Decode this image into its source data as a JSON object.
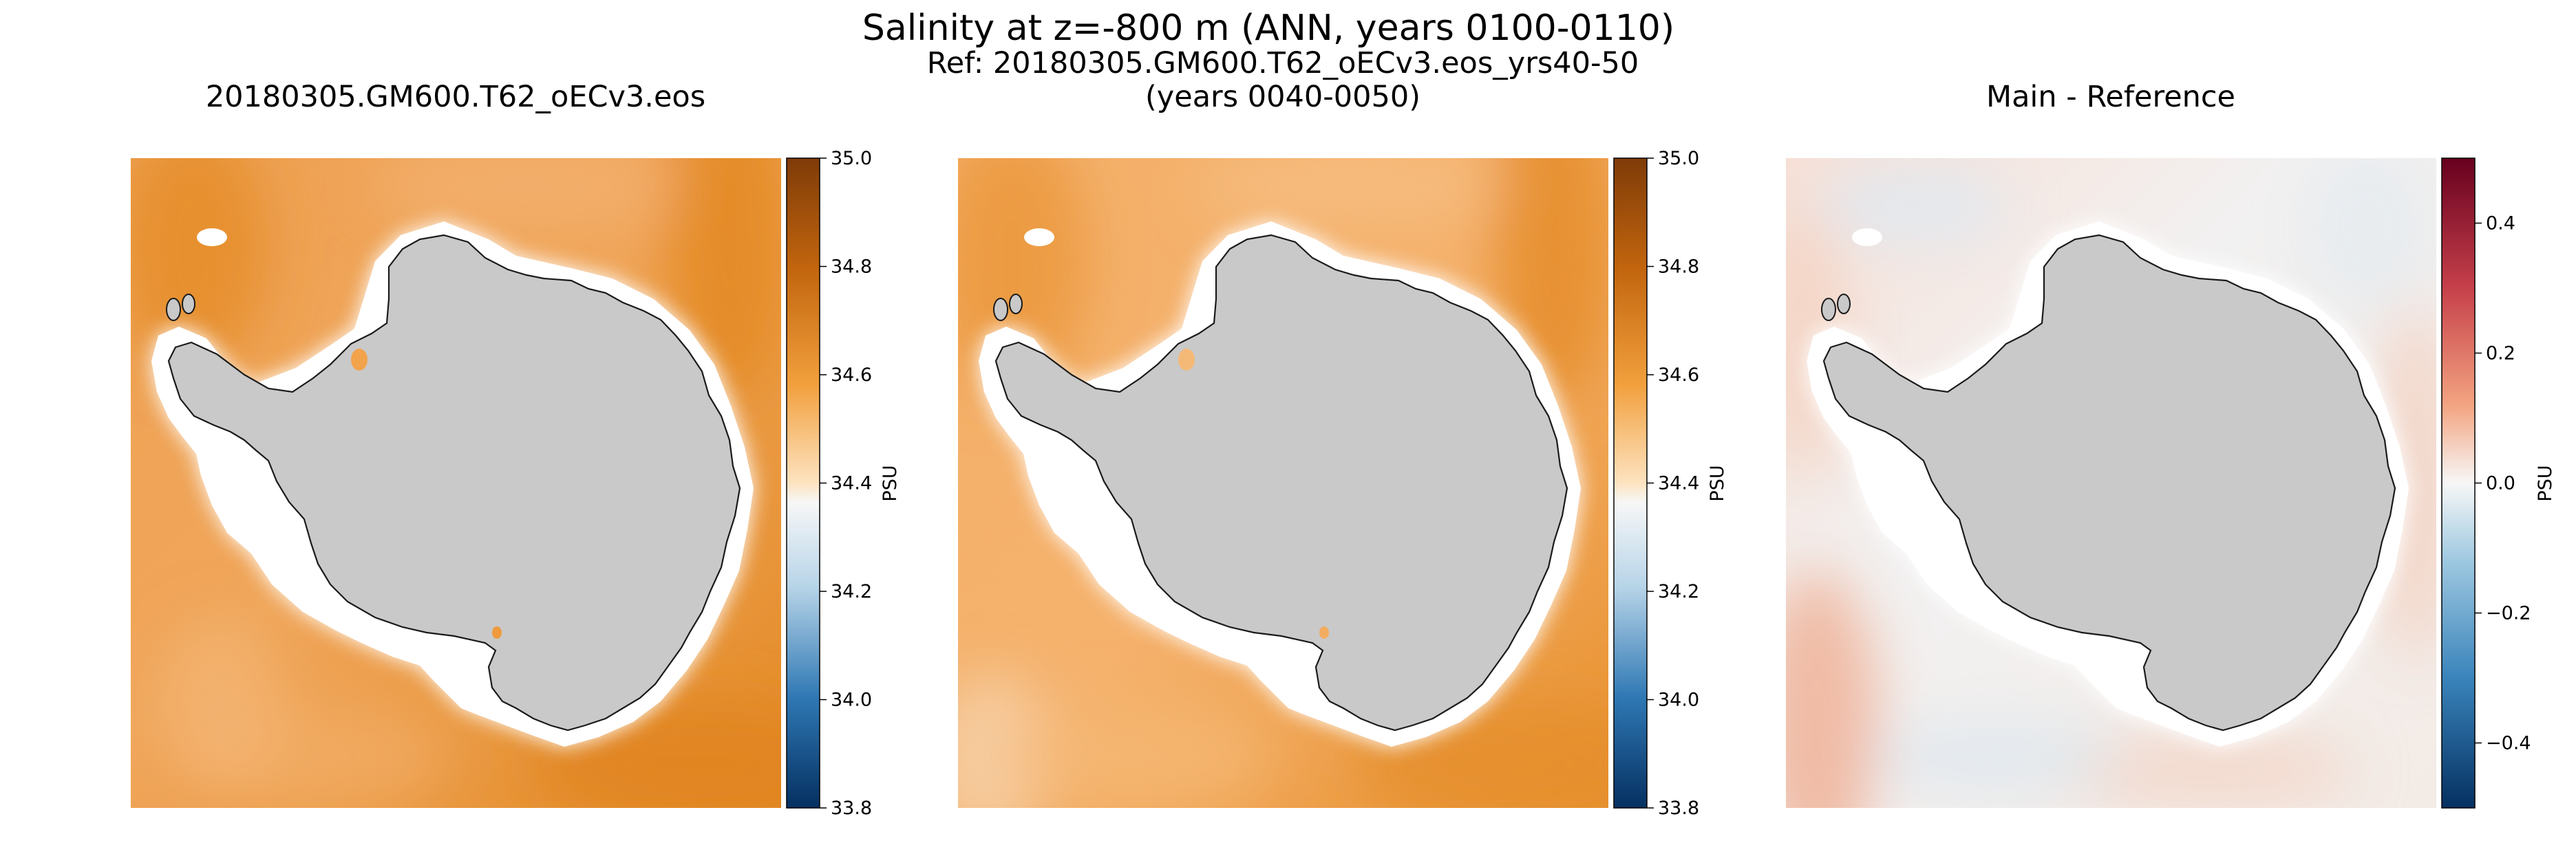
{
  "figure": {
    "suptitle": "Salinity at z=-800 m (ANN, years 0100-0110)"
  },
  "colors": {
    "land": "#c9c9c9",
    "coast": "#1a1a1a",
    "shelf": "#ffffff",
    "ocean_main": "#ee9a3e",
    "ocean_ref": "#f0a24b",
    "diff_base": "#f3f0ef"
  },
  "chart_data": [
    {
      "type": "heatmap",
      "title": "20180305.GM600.T62_oECv3.eos",
      "title_line2": "",
      "colormap": "orange-white-blue diverging",
      "colorbar": {
        "label": "PSU",
        "range": [
          33.8,
          35.0
        ],
        "ticks": [
          "35.0",
          "34.8",
          "34.6",
          "34.4",
          "34.2",
          "34.0",
          "33.8"
        ],
        "tick_values": [
          35.0,
          34.8,
          34.6,
          34.4,
          34.2,
          34.0,
          33.8
        ]
      },
      "field_range": [
        34.4,
        34.75
      ]
    },
    {
      "type": "heatmap",
      "title": "Ref: 20180305.GM600.T62_oECv3.eos_yrs40-50",
      "title_line2": "(years 0040-0050)",
      "colormap": "orange-white-blue diverging",
      "colorbar": {
        "label": "PSU",
        "range": [
          33.8,
          35.0
        ],
        "ticks": [
          "35.0",
          "34.8",
          "34.6",
          "34.4",
          "34.2",
          "34.0",
          "33.8"
        ],
        "tick_values": [
          35.0,
          34.8,
          34.6,
          34.4,
          34.2,
          34.0,
          33.8
        ]
      },
      "field_range": [
        34.4,
        34.75
      ]
    },
    {
      "type": "heatmap",
      "title": "Main - Reference",
      "title_line2": "",
      "colormap": "red-white-blue diverging",
      "colorbar": {
        "label": "PSU",
        "range": [
          -0.5,
          0.5
        ],
        "ticks": [
          "0.4",
          "0.2",
          "0.0",
          "−0.2",
          "−0.4"
        ],
        "tick_values": [
          0.4,
          0.2,
          0.0,
          -0.2,
          -0.4
        ]
      },
      "field_range": [
        -0.1,
        0.2
      ]
    }
  ]
}
